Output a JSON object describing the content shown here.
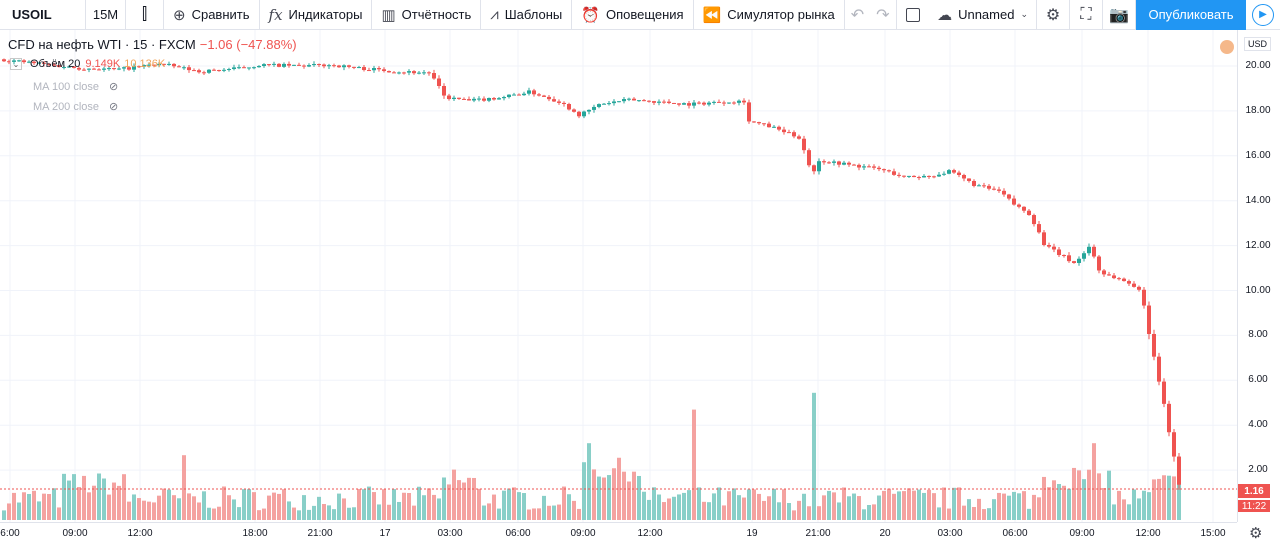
{
  "toolbar": {
    "symbol": "USOIL",
    "interval": "15М",
    "compare": "Сравнить",
    "indicators": "Индикаторы",
    "financials": "Отчётность",
    "templates": "Шаблоны",
    "alerts": "Оповещения",
    "replay": "Симулятор рынка",
    "layout_name": "Unnamed",
    "publish": "Опубликовать"
  },
  "legend": {
    "title": "CFD на нефть WTI · 15 · FXCM",
    "change": "−1.06 (−47.88%)",
    "volume_label": "Объём 20",
    "volume_value": "9.149K",
    "volume_ma": "10.136K",
    "ma100": "MA 100 close",
    "ma200": "MA 200 close"
  },
  "price_axis": {
    "currency": "USD",
    "labels": [
      "20.00",
      "18.00",
      "16.00",
      "14.00",
      "12.00",
      "10.00",
      "8.00",
      "6.00",
      "4.00",
      "2.00"
    ],
    "last_price": "1.16",
    "countdown": "11:22"
  },
  "time_axis": {
    "labels": [
      "6:00",
      "09:00",
      "12:00",
      "18:00",
      "21:00",
      "17",
      "03:00",
      "06:00",
      "09:00",
      "12:00",
      "19",
      "21:00",
      "20",
      "03:00",
      "06:00",
      "09:00",
      "12:00",
      "15:00"
    ]
  },
  "colors": {
    "up": "#26a69a",
    "down": "#ef5350",
    "vol_up": "#89cfc8",
    "vol_down": "#f4a2a0"
  },
  "chart_data": {
    "type": "candlestick",
    "symbol": "USOIL",
    "title": "CFD на нефть WTI · 15 · FXCM",
    "ylim": [
      0,
      21
    ],
    "price_path": [
      [
        0,
        20.3
      ],
      [
        40,
        20.1
      ],
      [
        80,
        19.9
      ],
      [
        120,
        19.85
      ],
      [
        160,
        20.1
      ],
      [
        200,
        19.75
      ],
      [
        240,
        19.9
      ],
      [
        260,
        20.05
      ],
      [
        300,
        20.0
      ],
      [
        330,
        20.05
      ],
      [
        360,
        19.9
      ],
      [
        400,
        19.75
      ],
      [
        430,
        19.7
      ],
      [
        445,
        18.6
      ],
      [
        470,
        18.45
      ],
      [
        500,
        18.6
      ],
      [
        530,
        18.85
      ],
      [
        560,
        18.4
      ],
      [
        580,
        17.8
      ],
      [
        600,
        18.3
      ],
      [
        630,
        18.5
      ],
      [
        660,
        18.4
      ],
      [
        690,
        18.3
      ],
      [
        720,
        18.4
      ],
      [
        745,
        18.45
      ],
      [
        748,
        17.55
      ],
      [
        770,
        17.3
      ],
      [
        800,
        16.8
      ],
      [
        812,
        15.2
      ],
      [
        820,
        15.8
      ],
      [
        850,
        15.6
      ],
      [
        880,
        15.4
      ],
      [
        905,
        15.05
      ],
      [
        930,
        15.1
      ],
      [
        950,
        15.3
      ],
      [
        975,
        14.7
      ],
      [
        1000,
        14.4
      ],
      [
        1015,
        13.8
      ],
      [
        1030,
        13.4
      ],
      [
        1045,
        12.0
      ],
      [
        1060,
        11.6
      ],
      [
        1075,
        11.2
      ],
      [
        1090,
        12.0
      ],
      [
        1100,
        10.8
      ],
      [
        1120,
        10.5
      ],
      [
        1135,
        10.2
      ],
      [
        1142,
        9.8
      ],
      [
        1150,
        7.9
      ],
      [
        1160,
        5.8
      ],
      [
        1170,
        3.5
      ],
      [
        1180,
        1.16
      ]
    ],
    "volume_spikes": [
      [
        183,
        2.7
      ],
      [
        455,
        2.1
      ],
      [
        590,
        3.2
      ],
      [
        692,
        4.6
      ],
      [
        813,
        5.3
      ],
      [
        1093,
        3.2
      ]
    ]
  }
}
